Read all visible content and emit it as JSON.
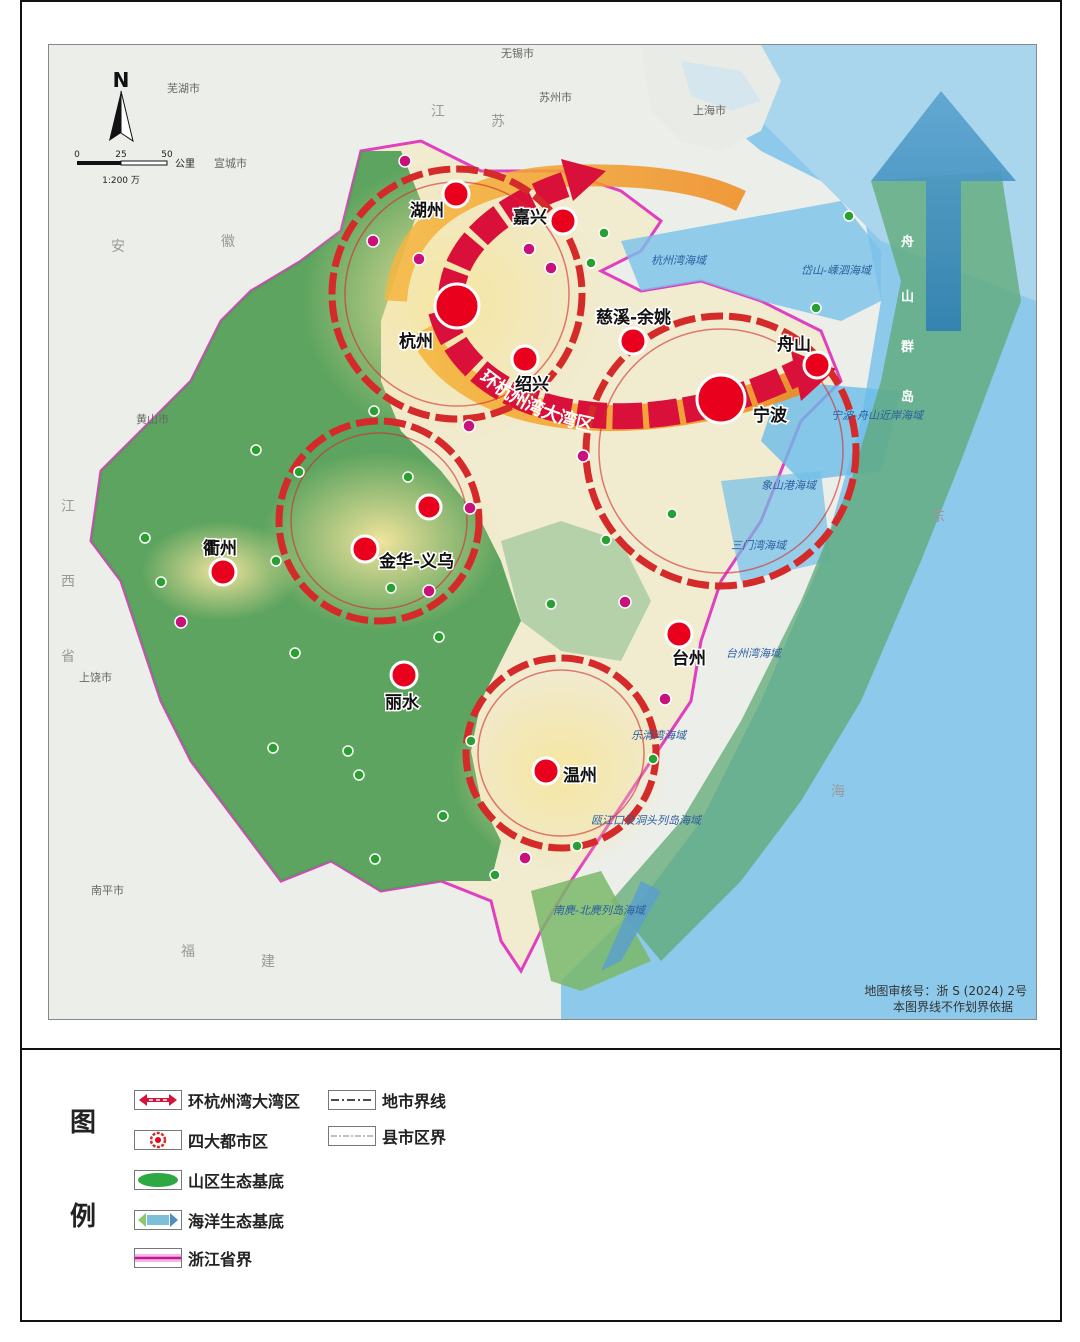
{
  "map": {
    "north": "N",
    "scale_ticks": [
      "0",
      "25",
      "50"
    ],
    "scale_unit": "公里",
    "scale_ratio": "1:200 万",
    "approval": "地图审核号：浙 S (2024) 2号",
    "disclaimer": "本图界线不作划界依据",
    "corridor_label": "环杭州湾大湾区",
    "metro_cities": [
      {
        "id": "hangzhou",
        "name": "杭州"
      },
      {
        "id": "ningbo",
        "name": "宁波"
      },
      {
        "id": "jinhua",
        "name": "金华-义乌"
      },
      {
        "id": "wenzhou",
        "name": "温州"
      }
    ],
    "cities": [
      {
        "id": "huzhou",
        "name": "湖州"
      },
      {
        "id": "jiaxing",
        "name": "嘉兴"
      },
      {
        "id": "shaoxing",
        "name": "绍兴"
      },
      {
        "id": "cixi",
        "name": "慈溪-余姚"
      },
      {
        "id": "zhoushan",
        "name": "舟山"
      },
      {
        "id": "quzhou",
        "name": "衢州"
      },
      {
        "id": "lishui",
        "name": "丽水"
      },
      {
        "id": "taizhou",
        "name": "台州"
      }
    ],
    "outside_places": {
      "wuxi": "无锡市",
      "suzhou": "苏州市",
      "wuhu": "芜湖市",
      "shanghai": "上海市",
      "xuancheng": "宣城市",
      "huangshan": "黄山市",
      "shangrao": "上饶市",
      "nanping": "南平市"
    },
    "sea_areas": {
      "hzw": "杭州湾海域",
      "daishan": "岱山-嵊泗海域",
      "nbzs": "宁波-舟山近岸海域",
      "xiangshan": "象山港海域",
      "sanmen": "三门湾海域",
      "taizhou": "台州湾海域",
      "yueqing": "乐清湾海域",
      "oujiang": "瓯江口及洞头列岛海域",
      "nanji": "南麂-北麂列岛海域"
    },
    "region_chars": {
      "zhoushan_islands": [
        "舟",
        "山",
        "群",
        "岛"
      ],
      "jiang1": "江",
      "su": "苏",
      "an": "安",
      "hui": "徽",
      "jiang2": "江",
      "xi": "西",
      "sheng": "省",
      "fu": "福",
      "jian": "建",
      "dong": "东",
      "hai": "海"
    }
  },
  "legend": {
    "title_top": "图",
    "title_bottom": "例",
    "items": [
      {
        "label": "环杭州湾大湾区"
      },
      {
        "label": "四大都市区"
      },
      {
        "label": "山区生态基底"
      },
      {
        "label": "海洋生态基底"
      },
      {
        "label": "浙江省界"
      },
      {
        "label": "地市界线"
      },
      {
        "label": "县市区界"
      }
    ]
  },
  "colors": {
    "mountain_green": "#4fa05a",
    "sea_blue": "#78c6ec",
    "corridor_red": "#d8103a",
    "ring_red": "#d42a2a",
    "arc_orange": "#f5a623",
    "boundary_pink": "#e040c0",
    "ocean_arrow": "#3f8fc0"
  }
}
